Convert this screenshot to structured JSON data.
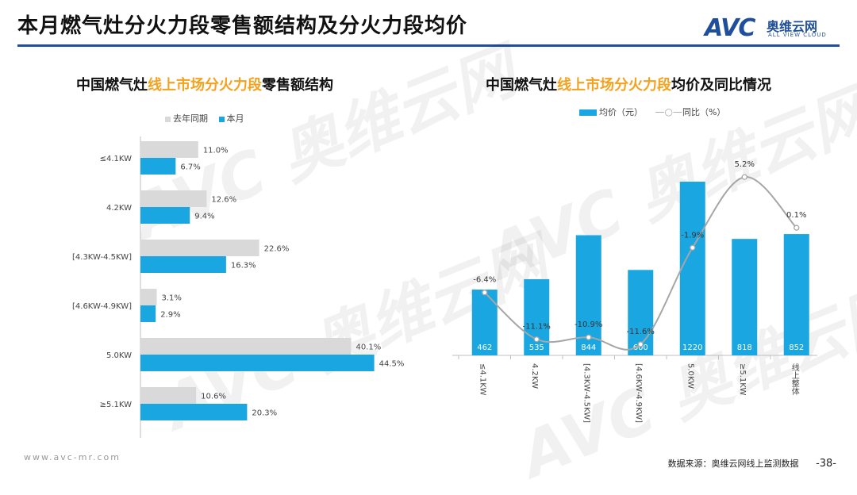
{
  "page": {
    "title": "本月燃气灶分火力段零售额结构及分火力段均价",
    "logo_mark": "AVC",
    "logo_cn": "奥维云网",
    "logo_en": "ALL VIEW CLOUD",
    "footer_url": "www.avc-mr.com",
    "footer_source": "数据来源：奥维云网线上监测数据",
    "page_number": "-38-",
    "watermark": "AVC 奥维云网"
  },
  "colors": {
    "blue": "#1aa7e1",
    "gray": "#d9d9d9",
    "line": "#a6a6a6",
    "highlight": "#f5a11d",
    "brand": "#1f4e9c"
  },
  "left_title": {
    "pre": "中国燃气灶",
    "highlight": "线上市场分火力段",
    "post": "零售额结构"
  },
  "right_title": {
    "pre": "中国燃气灶",
    "highlight": "线上市场分火力段",
    "post": "均价及同比情况"
  },
  "chart_data": [
    {
      "type": "bar",
      "orientation": "horizontal",
      "title": "中国燃气灶线上市场分火力段零售额结构",
      "categories": [
        "≤4.1KW",
        "4.2KW",
        "[4.3KW-4.5KW]",
        "[4.6KW-4.9KW]",
        "5.0KW",
        "≥5.1KW"
      ],
      "series": [
        {
          "name": "去年同期",
          "color": "#d9d9d9",
          "values": [
            11.0,
            12.6,
            22.6,
            3.1,
            40.1,
            10.6
          ]
        },
        {
          "name": "本月",
          "color": "#1aa7e1",
          "values": [
            6.7,
            9.4,
            16.3,
            2.9,
            44.5,
            20.3
          ]
        }
      ],
      "unit": "%",
      "xlim": [
        0,
        50
      ]
    },
    {
      "type": "bar+line",
      "title": "中国燃气灶线上市场分火力段均价及同比情况",
      "categories": [
        "≤4.1KW",
        "4.2KW",
        "[4.3KW-4.5KW]",
        "[4.6KW-4.9KW]",
        "5.0KW",
        "≥5.1KW",
        "线上整体"
      ],
      "bar_series": {
        "name": "均价（元）",
        "color": "#1aa7e1",
        "values": [
          462,
          535,
          844,
          600,
          1220,
          818,
          852
        ]
      },
      "line_series": {
        "name": "同比（%）",
        "color": "#a6a6a6",
        "values": [
          -6.4,
          -11.1,
          -10.9,
          -11.6,
          -1.9,
          5.2,
          0.1
        ],
        "labels": [
          "-6.4%",
          "-11.1%",
          "-10.9%",
          "-11.6%",
          "-1.9%",
          "5.2%",
          "0.1%"
        ]
      },
      "ylim_bar": [
        0,
        1400
      ],
      "ylim_line": [
        -14,
        7
      ]
    }
  ]
}
